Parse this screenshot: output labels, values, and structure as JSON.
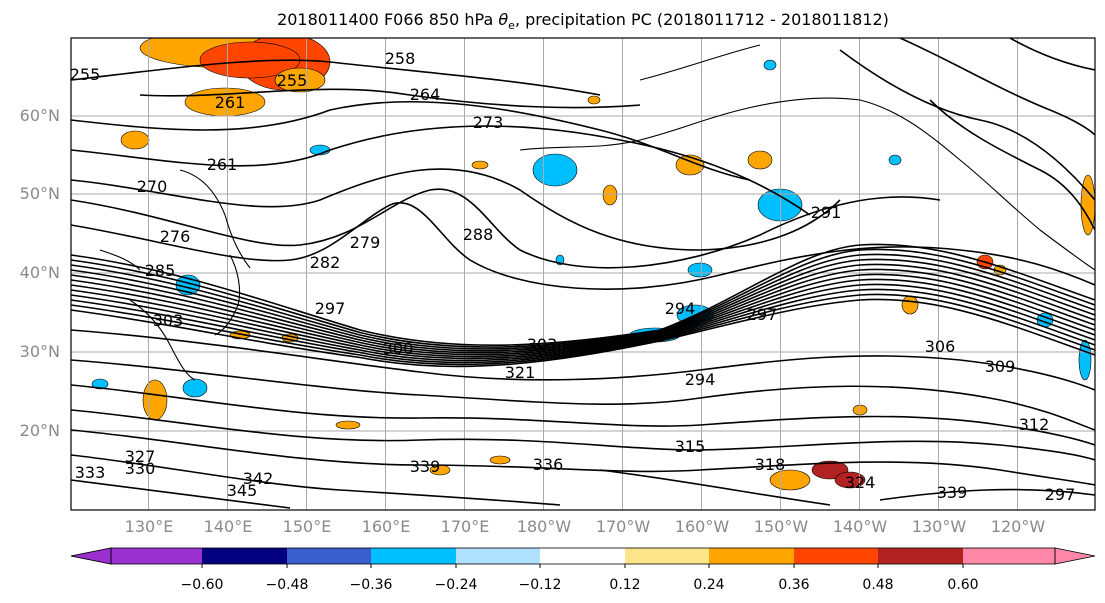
{
  "title": {
    "prefix": "2018011400 F066 850 hPa ",
    "symbol": "θ",
    "subscript": "e",
    "suffix": ", precipitation PC (2018011712 - 2018011812)"
  },
  "map": {
    "lat_labels": [
      "60°N",
      "50°N",
      "40°N",
      "30°N",
      "20°N"
    ],
    "lon_labels": [
      "130°E",
      "140°E",
      "150°E",
      "160°E",
      "170°E",
      "180°W",
      "170°W",
      "160°W",
      "150°W",
      "140°W",
      "130°W",
      "120°W"
    ],
    "contour_labels": [
      "255",
      "258",
      "264",
      "261",
      "255",
      "273",
      "276",
      "270",
      "261",
      "279",
      "282",
      "285",
      "297",
      "288",
      "291",
      "294",
      "297",
      "300",
      "303",
      "306",
      "309",
      "312",
      "315",
      "318",
      "321",
      "324",
      "327",
      "330",
      "333",
      "336",
      "339",
      "342",
      "345",
      "339",
      "303",
      "297",
      "294"
    ],
    "line_color": "#000000",
    "grid_color": "#aaaaaa",
    "tick_label_color": "#8a8a8a"
  },
  "colorbar": {
    "ticks": [
      "−0.60",
      "−0.48",
      "−0.36",
      "−0.24",
      "−0.12",
      "0.12",
      "0.24",
      "0.36",
      "0.48",
      "0.60"
    ],
    "colors": [
      "#9b30d0",
      "#000080",
      "#3a5fcd",
      "#00bfff",
      "#b0e2ff",
      "#ffffff",
      "#fde68a",
      "#ffa500",
      "#ff4500",
      "#b22222",
      "#ff88aa"
    ]
  }
}
